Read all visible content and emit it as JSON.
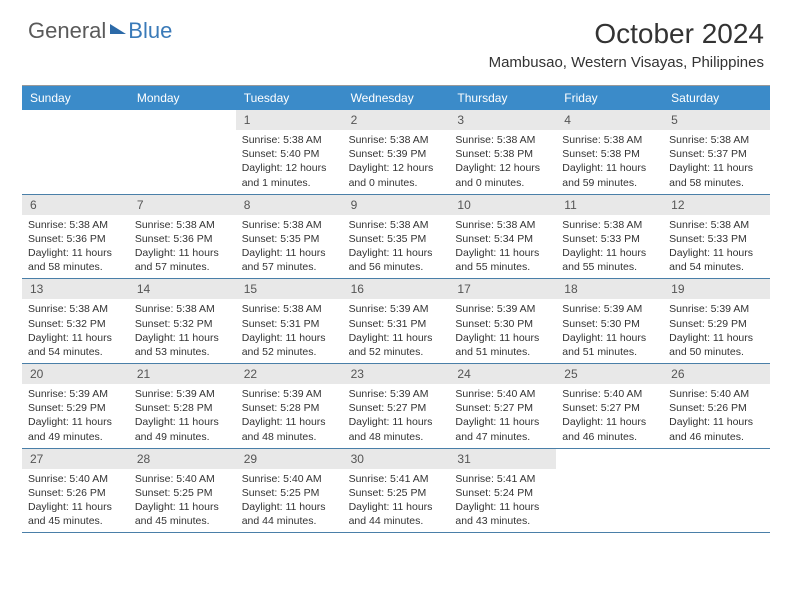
{
  "logo": {
    "text1": "General",
    "text2": "Blue"
  },
  "title": "October 2024",
  "location": "Mambusao, Western Visayas, Philippines",
  "colors": {
    "header_bg": "#3b8bc9",
    "date_bg": "#e8e8e8",
    "week_border": "#4a7fa8",
    "text": "#333333",
    "logo_gray": "#5a5a5a",
    "logo_blue": "#3a7ab8"
  },
  "day_names": [
    "Sunday",
    "Monday",
    "Tuesday",
    "Wednesday",
    "Thursday",
    "Friday",
    "Saturday"
  ],
  "first_day_column": 2,
  "days": [
    {
      "n": 1,
      "sr": "Sunrise: 5:38 AM",
      "ss": "Sunset: 5:40 PM",
      "dl": "Daylight: 12 hours and 1 minutes."
    },
    {
      "n": 2,
      "sr": "Sunrise: 5:38 AM",
      "ss": "Sunset: 5:39 PM",
      "dl": "Daylight: 12 hours and 0 minutes."
    },
    {
      "n": 3,
      "sr": "Sunrise: 5:38 AM",
      "ss": "Sunset: 5:38 PM",
      "dl": "Daylight: 12 hours and 0 minutes."
    },
    {
      "n": 4,
      "sr": "Sunrise: 5:38 AM",
      "ss": "Sunset: 5:38 PM",
      "dl": "Daylight: 11 hours and 59 minutes."
    },
    {
      "n": 5,
      "sr": "Sunrise: 5:38 AM",
      "ss": "Sunset: 5:37 PM",
      "dl": "Daylight: 11 hours and 58 minutes."
    },
    {
      "n": 6,
      "sr": "Sunrise: 5:38 AM",
      "ss": "Sunset: 5:36 PM",
      "dl": "Daylight: 11 hours and 58 minutes."
    },
    {
      "n": 7,
      "sr": "Sunrise: 5:38 AM",
      "ss": "Sunset: 5:36 PM",
      "dl": "Daylight: 11 hours and 57 minutes."
    },
    {
      "n": 8,
      "sr": "Sunrise: 5:38 AM",
      "ss": "Sunset: 5:35 PM",
      "dl": "Daylight: 11 hours and 57 minutes."
    },
    {
      "n": 9,
      "sr": "Sunrise: 5:38 AM",
      "ss": "Sunset: 5:35 PM",
      "dl": "Daylight: 11 hours and 56 minutes."
    },
    {
      "n": 10,
      "sr": "Sunrise: 5:38 AM",
      "ss": "Sunset: 5:34 PM",
      "dl": "Daylight: 11 hours and 55 minutes."
    },
    {
      "n": 11,
      "sr": "Sunrise: 5:38 AM",
      "ss": "Sunset: 5:33 PM",
      "dl": "Daylight: 11 hours and 55 minutes."
    },
    {
      "n": 12,
      "sr": "Sunrise: 5:38 AM",
      "ss": "Sunset: 5:33 PM",
      "dl": "Daylight: 11 hours and 54 minutes."
    },
    {
      "n": 13,
      "sr": "Sunrise: 5:38 AM",
      "ss": "Sunset: 5:32 PM",
      "dl": "Daylight: 11 hours and 54 minutes."
    },
    {
      "n": 14,
      "sr": "Sunrise: 5:38 AM",
      "ss": "Sunset: 5:32 PM",
      "dl": "Daylight: 11 hours and 53 minutes."
    },
    {
      "n": 15,
      "sr": "Sunrise: 5:38 AM",
      "ss": "Sunset: 5:31 PM",
      "dl": "Daylight: 11 hours and 52 minutes."
    },
    {
      "n": 16,
      "sr": "Sunrise: 5:39 AM",
      "ss": "Sunset: 5:31 PM",
      "dl": "Daylight: 11 hours and 52 minutes."
    },
    {
      "n": 17,
      "sr": "Sunrise: 5:39 AM",
      "ss": "Sunset: 5:30 PM",
      "dl": "Daylight: 11 hours and 51 minutes."
    },
    {
      "n": 18,
      "sr": "Sunrise: 5:39 AM",
      "ss": "Sunset: 5:30 PM",
      "dl": "Daylight: 11 hours and 51 minutes."
    },
    {
      "n": 19,
      "sr": "Sunrise: 5:39 AM",
      "ss": "Sunset: 5:29 PM",
      "dl": "Daylight: 11 hours and 50 minutes."
    },
    {
      "n": 20,
      "sr": "Sunrise: 5:39 AM",
      "ss": "Sunset: 5:29 PM",
      "dl": "Daylight: 11 hours and 49 minutes."
    },
    {
      "n": 21,
      "sr": "Sunrise: 5:39 AM",
      "ss": "Sunset: 5:28 PM",
      "dl": "Daylight: 11 hours and 49 minutes."
    },
    {
      "n": 22,
      "sr": "Sunrise: 5:39 AM",
      "ss": "Sunset: 5:28 PM",
      "dl": "Daylight: 11 hours and 48 minutes."
    },
    {
      "n": 23,
      "sr": "Sunrise: 5:39 AM",
      "ss": "Sunset: 5:27 PM",
      "dl": "Daylight: 11 hours and 48 minutes."
    },
    {
      "n": 24,
      "sr": "Sunrise: 5:40 AM",
      "ss": "Sunset: 5:27 PM",
      "dl": "Daylight: 11 hours and 47 minutes."
    },
    {
      "n": 25,
      "sr": "Sunrise: 5:40 AM",
      "ss": "Sunset: 5:27 PM",
      "dl": "Daylight: 11 hours and 46 minutes."
    },
    {
      "n": 26,
      "sr": "Sunrise: 5:40 AM",
      "ss": "Sunset: 5:26 PM",
      "dl": "Daylight: 11 hours and 46 minutes."
    },
    {
      "n": 27,
      "sr": "Sunrise: 5:40 AM",
      "ss": "Sunset: 5:26 PM",
      "dl": "Daylight: 11 hours and 45 minutes."
    },
    {
      "n": 28,
      "sr": "Sunrise: 5:40 AM",
      "ss": "Sunset: 5:25 PM",
      "dl": "Daylight: 11 hours and 45 minutes."
    },
    {
      "n": 29,
      "sr": "Sunrise: 5:40 AM",
      "ss": "Sunset: 5:25 PM",
      "dl": "Daylight: 11 hours and 44 minutes."
    },
    {
      "n": 30,
      "sr": "Sunrise: 5:41 AM",
      "ss": "Sunset: 5:25 PM",
      "dl": "Daylight: 11 hours and 44 minutes."
    },
    {
      "n": 31,
      "sr": "Sunrise: 5:41 AM",
      "ss": "Sunset: 5:24 PM",
      "dl": "Daylight: 11 hours and 43 minutes."
    }
  ]
}
